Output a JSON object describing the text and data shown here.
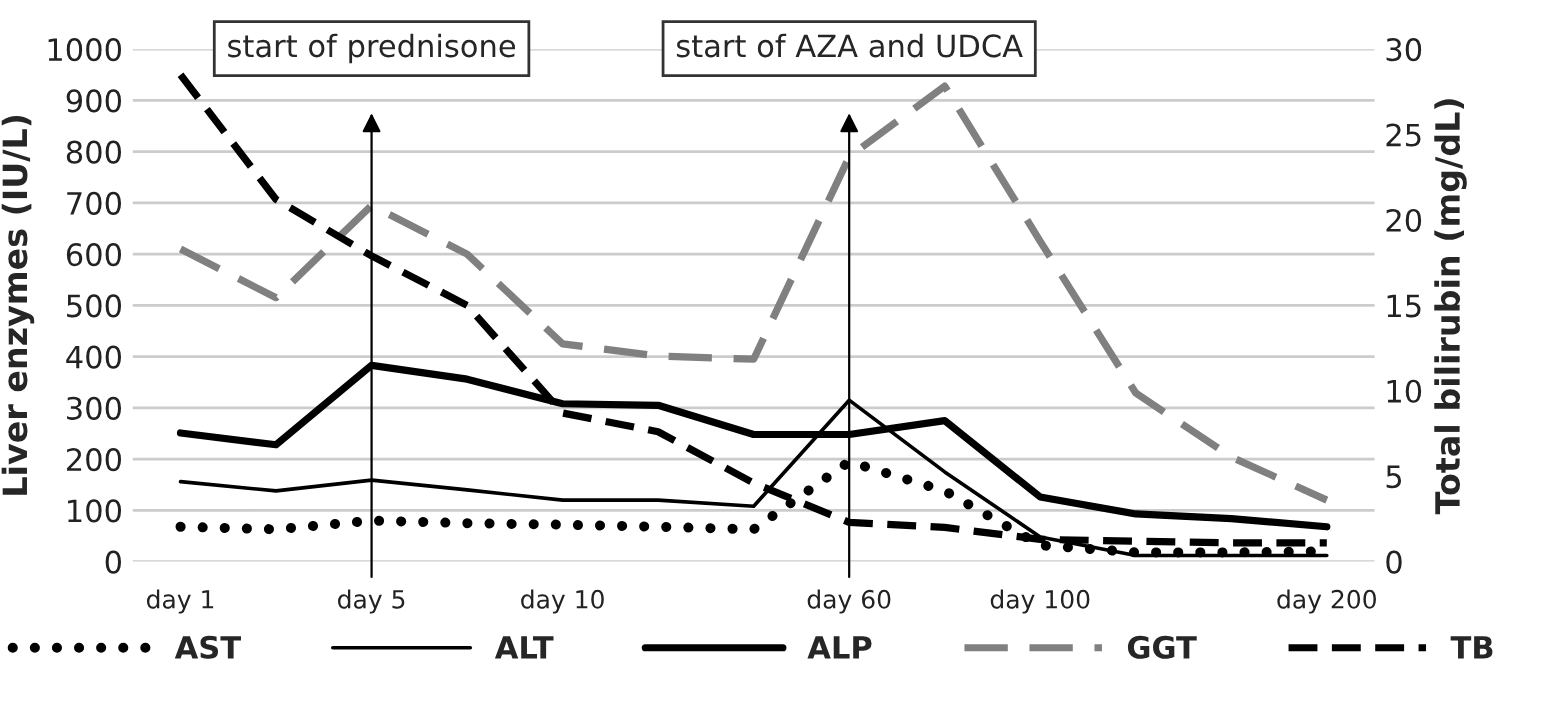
{
  "chart_data": {
    "type": "line",
    "categories": [
      "day 1",
      null,
      "day 5",
      null,
      "day 10",
      null,
      null,
      "day 60",
      null,
      "day 100",
      null,
      null,
      "day 200"
    ],
    "ylabel": "Liver enzymes (IU/L)",
    "y2label": "Total bilirubin (mg/dL)",
    "ylim": [
      0,
      1000
    ],
    "yticks": [
      0,
      100,
      200,
      300,
      400,
      500,
      600,
      700,
      800,
      900,
      1000
    ],
    "y2lim": [
      0,
      30
    ],
    "y2ticks": [
      0,
      5,
      10,
      15,
      20,
      25,
      30
    ],
    "grid": "y",
    "legend": "bottom",
    "marker": "none",
    "series": [
      {
        "name": "AST",
        "color": "#000000",
        "line_style": "dotted",
        "values": [
          68,
          63,
          80,
          75,
          72,
          68,
          63,
          195,
          138,
          32,
          18,
          18,
          20
        ]
      },
      {
        "name": "ALT",
        "color": "#000000",
        "line_style": "solid",
        "values": [
          156,
          138,
          159,
          140,
          120,
          120,
          108,
          315,
          175,
          48,
          12,
          12,
          12
        ]
      },
      {
        "name": "ALP",
        "color": "#000000",
        "line_style": "solid",
        "values": [
          251,
          228,
          383,
          356,
          308,
          305,
          248,
          248,
          275,
          126,
          93,
          84,
          68
        ]
      },
      {
        "name": "GGT",
        "color": "#808080",
        "line_style": "dashed",
        "values": [
          610,
          515,
          695,
          600,
          425,
          401,
          395,
          790,
          928,
          625,
          329,
          204,
          120
        ]
      },
      {
        "name": "TB",
        "color": "#000000",
        "line_style": "dashed",
        "axis": "y2",
        "values": [
          28.5,
          21.2,
          17.9,
          15.0,
          8.7,
          7.6,
          4.6,
          2.3,
          2.0,
          1.3,
          1.2,
          1.1,
          1.1
        ]
      }
    ],
    "ref_lines": [
      {
        "axis": "x",
        "value": "day 5",
        "label": "start of prednisone"
      },
      {
        "axis": "x",
        "value": "day 60",
        "label": "start of AZA and UDCA"
      }
    ]
  }
}
